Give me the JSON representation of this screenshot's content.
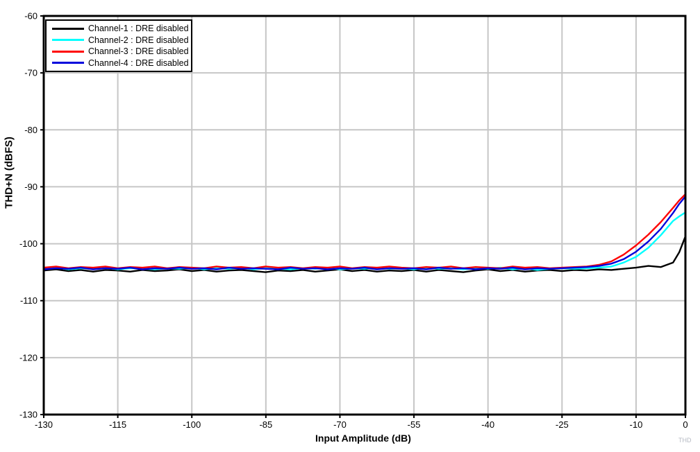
{
  "watermark": "THD",
  "chart_data": {
    "type": "line",
    "title": "",
    "xlabel": "Input Amplitude (dB)",
    "ylabel": "THD+N (dBFS)",
    "xlim": [
      -130,
      0
    ],
    "ylim": [
      -130,
      -60
    ],
    "x_ticks": [
      -130,
      -115,
      -100,
      -85,
      -70,
      -55,
      -40,
      -25,
      -10,
      0
    ],
    "y_ticks": [
      -60,
      -70,
      -80,
      -90,
      -100,
      -110,
      -120,
      -130
    ],
    "grid": true,
    "gridline_color": "#c6c6c6",
    "axis_color": "#000000",
    "legend_position": "top-left",
    "x": [
      -130,
      -127.5,
      -125,
      -122.5,
      -120,
      -117.5,
      -115,
      -112.5,
      -110,
      -107.5,
      -105,
      -102.5,
      -100,
      -97.5,
      -95,
      -92.5,
      -90,
      -87.5,
      -85,
      -82.5,
      -80,
      -77.5,
      -75,
      -72.5,
      -70,
      -67.5,
      -65,
      -62.5,
      -60,
      -57.5,
      -55,
      -52.5,
      -50,
      -47.5,
      -45,
      -42.5,
      -40,
      -37.5,
      -35,
      -32.5,
      -30,
      -27.5,
      -25,
      -22.5,
      -20,
      -17.5,
      -15,
      -12.5,
      -10,
      -7.5,
      -5,
      -2.5,
      -1.25,
      0
    ],
    "series": [
      {
        "name": "Channel-1 : DRE disabled",
        "color": "#000000",
        "values": [
          -104.7,
          -104.5,
          -104.8,
          -104.6,
          -104.9,
          -104.6,
          -104.7,
          -104.9,
          -104.6,
          -104.8,
          -104.7,
          -104.5,
          -104.8,
          -104.6,
          -104.9,
          -104.7,
          -104.6,
          -104.8,
          -105.0,
          -104.7,
          -104.8,
          -104.6,
          -104.9,
          -104.7,
          -104.5,
          -104.8,
          -104.6,
          -104.9,
          -104.7,
          -104.8,
          -104.6,
          -104.9,
          -104.6,
          -104.8,
          -105.0,
          -104.7,
          -104.5,
          -104.8,
          -104.6,
          -104.9,
          -104.7,
          -104.6,
          -104.8,
          -104.6,
          -104.7,
          -104.5,
          -104.6,
          -104.4,
          -104.2,
          -103.9,
          -104.1,
          -103.3,
          -101.5,
          -98.7
        ]
      },
      {
        "name": "Channel-2 : DRE disabled",
        "color": "#00ffff",
        "values": [
          -104.4,
          -104.2,
          -104.5,
          -104.3,
          -104.4,
          -104.2,
          -104.5,
          -104.3,
          -104.4,
          -104.5,
          -104.3,
          -104.4,
          -104.2,
          -104.5,
          -104.3,
          -104.4,
          -104.2,
          -104.5,
          -104.3,
          -104.4,
          -104.5,
          -104.3,
          -104.4,
          -104.2,
          -104.5,
          -104.3,
          -104.4,
          -104.2,
          -104.4,
          -104.3,
          -104.5,
          -104.2,
          -104.4,
          -104.3,
          -104.5,
          -104.3,
          -104.4,
          -104.2,
          -104.5,
          -104.3,
          -104.6,
          -104.4,
          -104.3,
          -104.4,
          -104.3,
          -104.2,
          -104.0,
          -103.3,
          -102.3,
          -100.7,
          -98.5,
          -96.0,
          -95.2,
          -94.5
        ]
      },
      {
        "name": "Channel-3 : DRE disabled",
        "color": "#ff0000",
        "values": [
          -104.2,
          -104.0,
          -104.3,
          -104.1,
          -104.2,
          -104.0,
          -104.3,
          -104.1,
          -104.2,
          -104.0,
          -104.3,
          -104.1,
          -104.2,
          -104.3,
          -104.0,
          -104.2,
          -104.1,
          -104.3,
          -104.0,
          -104.2,
          -104.1,
          -104.3,
          -104.1,
          -104.2,
          -104.0,
          -104.3,
          -104.1,
          -104.2,
          -104.0,
          -104.2,
          -104.3,
          -104.1,
          -104.2,
          -104.0,
          -104.3,
          -104.1,
          -104.2,
          -104.3,
          -104.0,
          -104.2,
          -104.1,
          -104.3,
          -104.2,
          -104.1,
          -104.0,
          -103.7,
          -103.1,
          -101.9,
          -100.3,
          -98.4,
          -96.2,
          -93.7,
          -92.4,
          -91.3
        ]
      },
      {
        "name": "Channel-4 : DRE disabled",
        "color": "#0000dd",
        "values": [
          -104.5,
          -104.3,
          -104.4,
          -104.2,
          -104.5,
          -104.3,
          -104.4,
          -104.2,
          -104.5,
          -104.3,
          -104.4,
          -104.2,
          -104.4,
          -104.3,
          -104.5,
          -104.2,
          -104.4,
          -104.3,
          -104.4,
          -104.5,
          -104.2,
          -104.4,
          -104.3,
          -104.5,
          -104.3,
          -104.4,
          -104.2,
          -104.5,
          -104.3,
          -104.4,
          -104.3,
          -104.5,
          -104.2,
          -104.4,
          -104.3,
          -104.5,
          -104.3,
          -104.4,
          -104.2,
          -104.5,
          -104.3,
          -104.4,
          -104.3,
          -104.2,
          -104.1,
          -103.9,
          -103.5,
          -102.7,
          -101.4,
          -99.6,
          -97.4,
          -94.6,
          -93.0,
          -91.7
        ]
      }
    ]
  }
}
